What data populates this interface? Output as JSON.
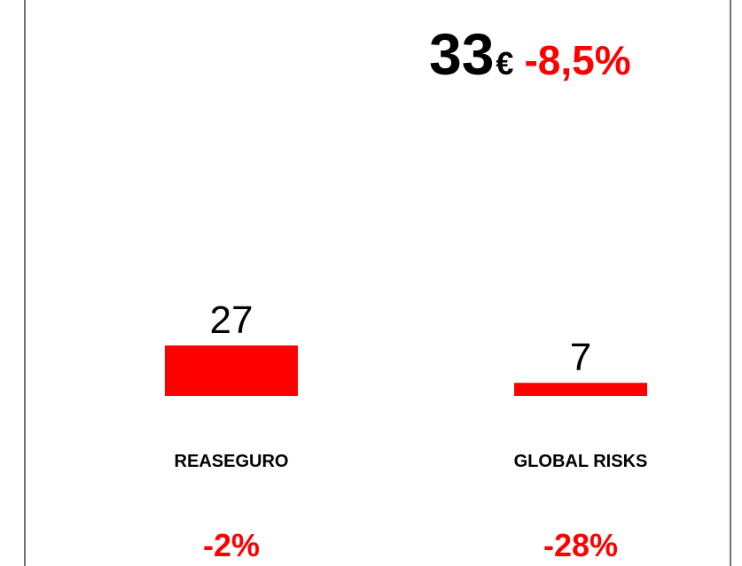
{
  "chart_data": {
    "type": "bar",
    "total": "33",
    "currency": "€",
    "total_change": "-8,5%",
    "categories": [
      "REASEGURO",
      "GLOBAL RISKS"
    ],
    "values": [
      27,
      7
    ],
    "changes": [
      "-2%",
      "-28%"
    ],
    "color": "#ff0000"
  }
}
